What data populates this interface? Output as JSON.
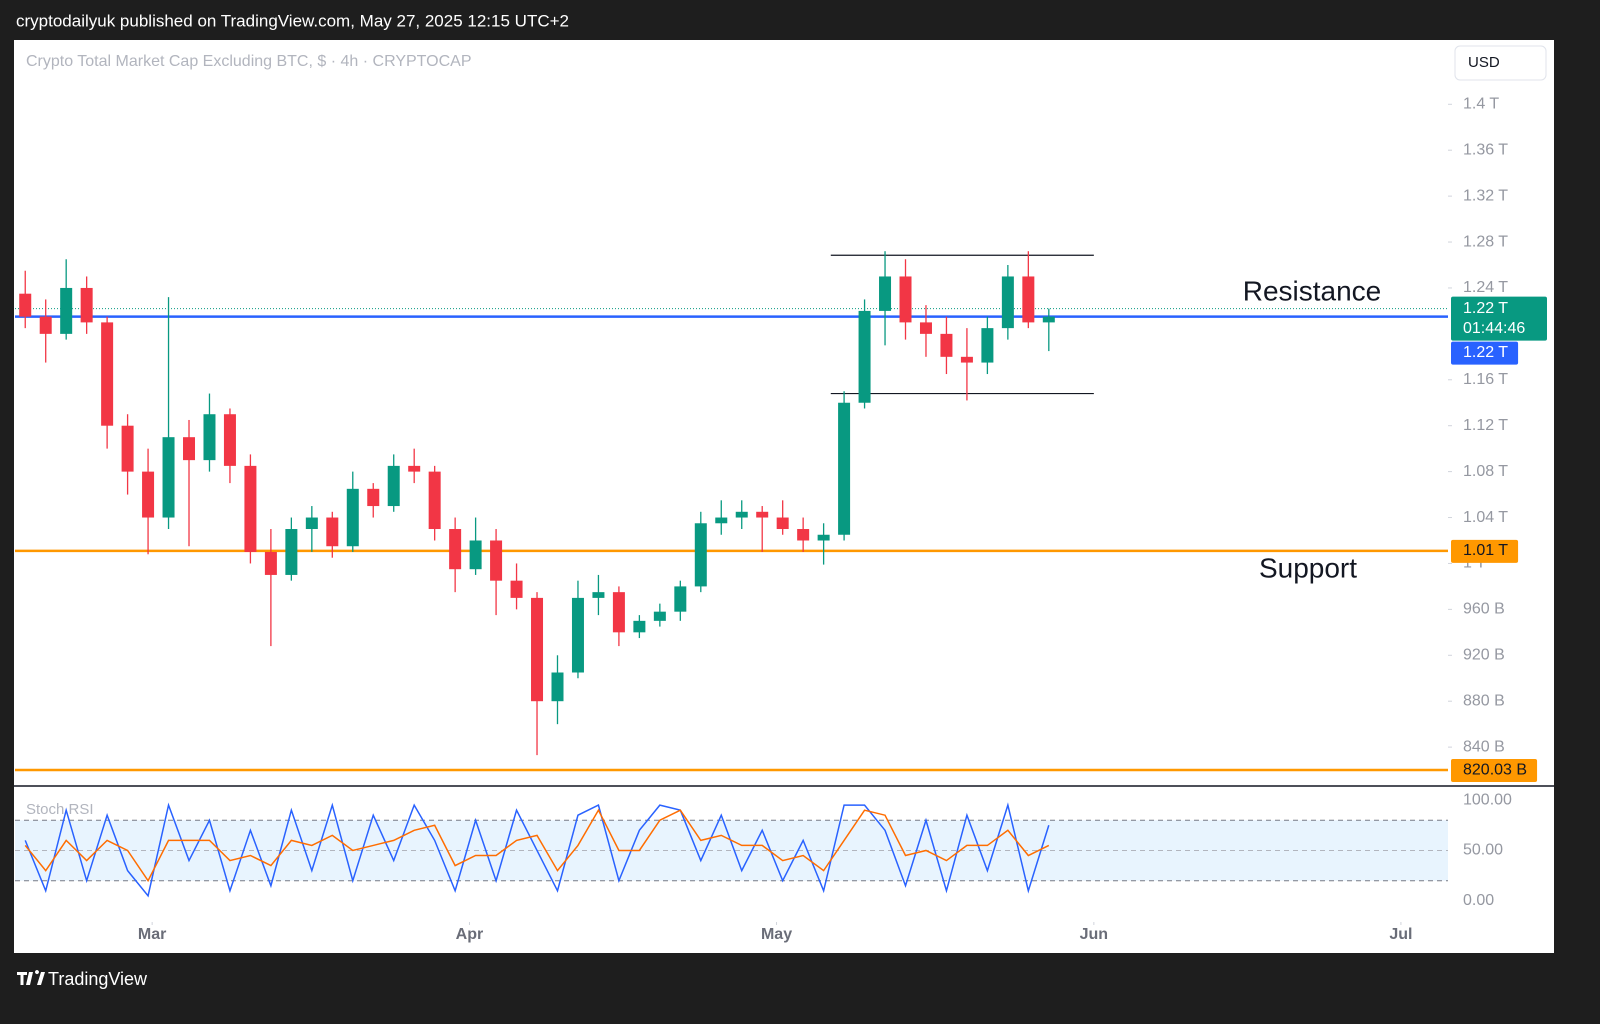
{
  "header": "cryptodailyuk published on TradingView.com, May 27, 2025 12:15 UTC+2",
  "footer": "TradingView",
  "currency_button": "USD",
  "chart_data": [
    {
      "type": "candlestick",
      "title": "Crypto Total Market Cap Excluding BTC, $ · 4h · CRYPTOCAP",
      "up_color": "#089981",
      "down_color": "#f23645",
      "x": [
        1,
        3,
        5,
        7,
        9,
        11,
        13,
        15,
        17,
        19,
        21,
        23,
        25,
        27,
        29,
        31,
        33,
        35,
        37,
        39,
        41,
        43,
        45,
        47,
        49,
        51,
        53,
        55,
        57,
        59,
        61,
        63,
        65,
        67,
        69,
        71,
        73,
        75,
        77,
        79,
        81,
        83,
        85,
        87,
        89,
        91,
        93,
        95,
        97,
        99,
        101
      ],
      "open": [
        1235,
        1215,
        1200,
        1240,
        1210,
        1120,
        1080,
        1040,
        1110,
        1090,
        1130,
        1085,
        1010,
        990,
        1030,
        1040,
        1015,
        1065,
        1050,
        1085,
        1080,
        1030,
        995,
        1020,
        985,
        970,
        880,
        905,
        970,
        975,
        940,
        950,
        958,
        980,
        1035,
        1040,
        1045,
        1040,
        1030,
        1020,
        1025,
        1140,
        1220,
        1250,
        1210,
        1200,
        1180,
        1175,
        1205,
        1250,
        1210
      ],
      "high": [
        1255,
        1230,
        1265,
        1250,
        1215,
        1130,
        1100,
        1232,
        1125,
        1148,
        1135,
        1095,
        1030,
        1040,
        1050,
        1045,
        1080,
        1070,
        1095,
        1100,
        1085,
        1040,
        1040,
        1030,
        1000,
        975,
        920,
        985,
        990,
        980,
        955,
        965,
        985,
        1045,
        1055,
        1055,
        1050,
        1055,
        1040,
        1035,
        1150,
        1230,
        1272,
        1265,
        1225,
        1215,
        1205,
        1215,
        1260,
        1272,
        1222
      ],
      "low": [
        1205,
        1175,
        1195,
        1200,
        1100,
        1060,
        1008,
        1030,
        1015,
        1080,
        1070,
        1000,
        928,
        985,
        1010,
        1005,
        1010,
        1040,
        1045,
        1070,
        1020,
        975,
        990,
        955,
        960,
        833,
        860,
        900,
        955,
        928,
        935,
        945,
        950,
        975,
        1025,
        1030,
        1010,
        1025,
        1010,
        999,
        1020,
        1135,
        1190,
        1195,
        1180,
        1165,
        1142,
        1165,
        1195,
        1205,
        1185
      ],
      "close": [
        1215,
        1200,
        1240,
        1210,
        1120,
        1080,
        1040,
        1110,
        1090,
        1130,
        1085,
        1010,
        990,
        1030,
        1040,
        1015,
        1065,
        1050,
        1085,
        1080,
        1030,
        995,
        1020,
        985,
        970,
        880,
        905,
        970,
        975,
        940,
        950,
        958,
        980,
        1035,
        1040,
        1045,
        1040,
        1030,
        1020,
        1025,
        1140,
        1220,
        1250,
        1210,
        1200,
        1180,
        1175,
        1205,
        1250,
        1210,
        1215
      ],
      "xlim": [
        0,
        140
      ],
      "xticks": [
        {
          "value": 13.4,
          "label": "Mar"
        },
        {
          "value": 44.4,
          "label": "Apr"
        },
        {
          "value": 74.4,
          "label": "May"
        },
        {
          "value": 105.4,
          "label": "Jun"
        },
        {
          "value": 135.4,
          "label": "Jul"
        }
      ],
      "ylim": [
        807,
        1456
      ],
      "yticks": [
        {
          "value": 1400,
          "label": "1.4 T"
        },
        {
          "value": 1360,
          "label": "1.36 T"
        },
        {
          "value": 1320,
          "label": "1.32 T"
        },
        {
          "value": 1280,
          "label": "1.28 T"
        },
        {
          "value": 1240,
          "label": "1.24 T"
        },
        {
          "value": 1160,
          "label": "1.16 T"
        },
        {
          "value": 1120,
          "label": "1.12 T"
        },
        {
          "value": 1080,
          "label": "1.08 T"
        },
        {
          "value": 1040,
          "label": "1.04 T"
        },
        {
          "value": 1000,
          "label": "1 T"
        },
        {
          "value": 960,
          "label": "960 B"
        },
        {
          "value": 920,
          "label": "920 B"
        },
        {
          "value": 880,
          "label": "880 B"
        },
        {
          "value": 840,
          "label": "840 B"
        }
      ],
      "hlines": [
        {
          "value": 1215,
          "label": "1.22 T",
          "color": "#2962ff"
        },
        {
          "value": 1011,
          "label": "1.01 T",
          "color": "#ff9800"
        },
        {
          "value": 820.03,
          "label": "820.03 B",
          "color": "#ff9800"
        }
      ],
      "last_price": {
        "value": 1222,
        "label": "1.22 T",
        "countdown": "01:44:46",
        "color": "#089981"
      },
      "range_box": {
        "x": [
          79.7,
          105.4
        ],
        "y": [
          1148,
          1268.5
        ]
      },
      "annotations": [
        "Resistance",
        "Support"
      ]
    },
    {
      "type": "line",
      "title": "Stoch RSI",
      "series": [
        {
          "name": "K",
          "color": "#2962ff",
          "values": [
            60,
            10,
            90,
            20,
            85,
            30,
            5,
            95,
            40,
            80,
            10,
            70,
            15,
            90,
            30,
            95,
            20,
            85,
            40,
            95,
            60,
            10,
            80,
            20,
            90,
            50,
            10,
            85,
            95,
            20,
            70,
            95,
            90,
            40,
            85,
            30,
            70,
            20,
            60,
            10,
            95,
            95,
            70,
            15,
            80,
            10,
            85,
            30,
            95,
            10,
            75
          ]
        },
        {
          "name": "D",
          "color": "#ff6d00",
          "values": [
            55,
            30,
            60,
            40,
            60,
            50,
            20,
            60,
            60,
            60,
            40,
            45,
            35,
            60,
            55,
            65,
            50,
            55,
            60,
            70,
            75,
            35,
            45,
            45,
            60,
            65,
            30,
            55,
            90,
            50,
            50,
            80,
            90,
            60,
            65,
            55,
            55,
            40,
            45,
            30,
            60,
            90,
            85,
            45,
            50,
            40,
            55,
            55,
            70,
            45,
            55
          ]
        }
      ],
      "bands": [
        20,
        80
      ],
      "ylim": [
        -21,
        113
      ],
      "yticks": [
        {
          "value": 100,
          "label": "100.00"
        },
        {
          "value": 50,
          "label": "50.00"
        },
        {
          "value": 0,
          "label": "0.00"
        }
      ]
    }
  ]
}
